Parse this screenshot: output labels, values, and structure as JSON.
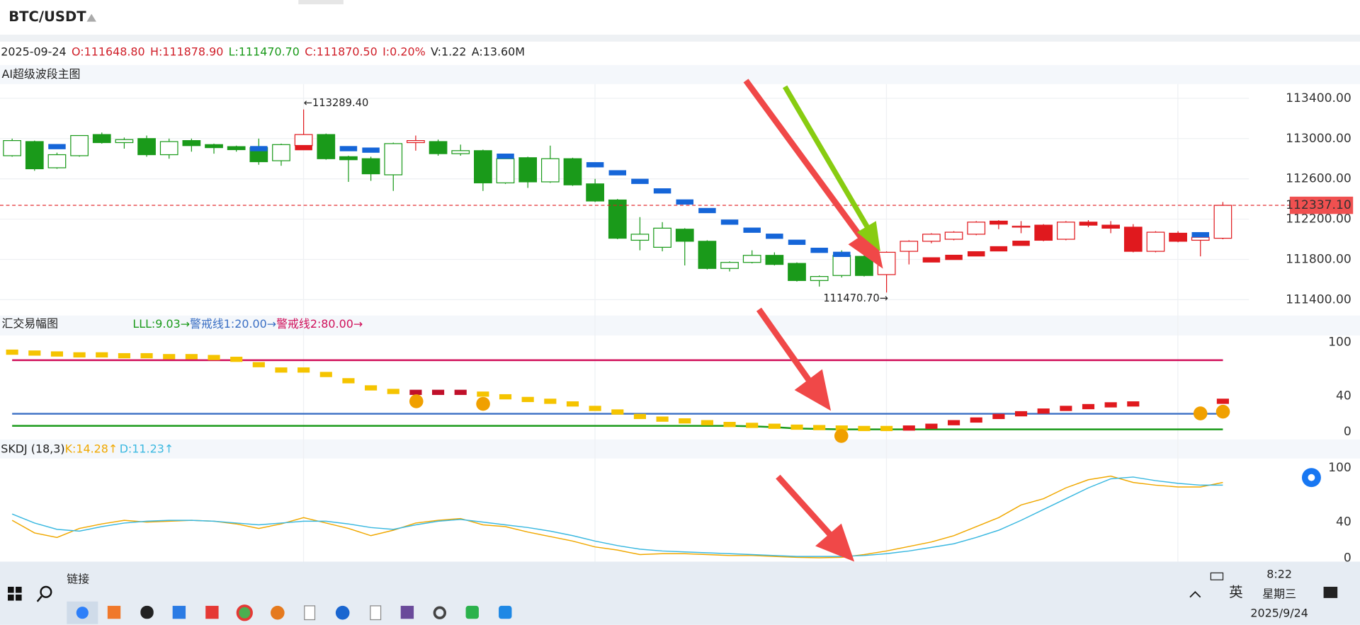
{
  "header": {
    "symbol": "BTC/USDT"
  },
  "info": {
    "date": "2025-09-24",
    "open": "O:111648.80",
    "high": "H:111878.90",
    "low": "L:111470.70",
    "close": "C:111870.50",
    "change": "I:0.20%",
    "volume": "V:1.22",
    "amount": "A:13.60M"
  },
  "chart_data": [
    {
      "type": "candlestick",
      "title": "AI超级波段主图",
      "open": [
        112830,
        112970,
        112710,
        112830,
        113040,
        112960,
        113000,
        112840,
        112980,
        112940,
        112920,
        112910,
        112780,
        112930,
        113040,
        112820,
        112800,
        112640,
        112960,
        112970,
        112850,
        112880,
        112560,
        112810,
        112570,
        112800,
        112550,
        112390,
        111990,
        111920,
        112100,
        111980,
        111710,
        111770,
        111840,
        111760,
        111590,
        111640,
        111830,
        111648.8,
        111880,
        111980,
        112000,
        112050,
        112180,
        112120,
        112140,
        112000,
        112170,
        112140,
        112120,
        111880,
        112060,
        111990,
        112010
      ],
      "high": [
        113000,
        112980,
        112860,
        113030,
        113060,
        113010,
        113030,
        113000,
        113000,
        112950,
        112930,
        113000,
        112950,
        113289.4,
        113050,
        112830,
        112820,
        112960,
        113030,
        112990,
        112940,
        112890,
        112810,
        112820,
        112930,
        112810,
        112600,
        112400,
        112220,
        112170,
        112110,
        111990,
        111780,
        111890,
        111870,
        111770,
        111640,
        111890,
        111850,
        111878.9,
        111990,
        112060,
        112080,
        112180,
        112190,
        112180,
        112150,
        112180,
        112190,
        112180,
        112150,
        112080,
        112080,
        112050,
        112370
      ],
      "low": [
        112820,
        112680,
        112700,
        112820,
        112950,
        112900,
        112820,
        112800,
        112870,
        112850,
        112870,
        112740,
        112730,
        112900,
        112790,
        112570,
        112580,
        112480,
        112880,
        112830,
        112830,
        112480,
        112550,
        112510,
        112560,
        112530,
        112370,
        112000,
        111890,
        111880,
        111740,
        111700,
        111680,
        111760,
        111740,
        111580,
        111530,
        111620,
        111630,
        111470.7,
        111750,
        111960,
        111990,
        112040,
        112100,
        112060,
        111980,
        111990,
        112120,
        112060,
        111870,
        111870,
        111970,
        111830,
        112000
      ],
      "close": [
        112980,
        112700,
        112840,
        113030,
        112960,
        112990,
        112840,
        112970,
        112930,
        112910,
        112890,
        112770,
        112940,
        113040,
        112800,
        112790,
        112650,
        112950,
        112980,
        112850,
        112880,
        112560,
        112800,
        112570,
        112800,
        112540,
        112380,
        112010,
        112050,
        112110,
        111980,
        111710,
        111770,
        111840,
        111750,
        111590,
        111630,
        111840,
        111640,
        111870.5,
        111980,
        112050,
        112070,
        112170,
        112150,
        112130,
        111990,
        112170,
        112140,
        112110,
        111880,
        112070,
        111980,
        112020,
        112337.1
      ],
      "colors": [
        "#1a9a1a",
        "#1a9a1a",
        "#1a9a1a",
        "#1a9a1a",
        "#1a9a1a",
        "#1a9a1a",
        "#1a9a1a",
        "#1a9a1a",
        "#1a9a1a",
        "#1a9a1a",
        "#1a9a1a",
        "#1a9a1a",
        "#1a9a1a",
        "#e0191e",
        "#1a9a1a",
        "#1a9a1a",
        "#1a9a1a",
        "#1a9a1a",
        "#e0191e",
        "#1a9a1a",
        "#1a9a1a",
        "#1a9a1a",
        "#1a9a1a",
        "#1a9a1a",
        "#1a9a1a",
        "#1a9a1a",
        "#1a9a1a",
        "#1a9a1a",
        "#1a9a1a",
        "#1a9a1a",
        "#1a9a1a",
        "#1a9a1a",
        "#1a9a1a",
        "#1a9a1a",
        "#1a9a1a",
        "#1a9a1a",
        "#1a9a1a",
        "#1a9a1a",
        "#1a9a1a",
        "#e0191e",
        "#e0191e",
        "#e0191e",
        "#e0191e",
        "#e0191e",
        "#e0191e",
        "#e0191e",
        "#e0191e",
        "#e0191e",
        "#e0191e",
        "#e0191e",
        "#e0191e",
        "#e0191e",
        "#e0191e",
        "#e0191e",
        "#e0191e"
      ],
      "markers": [
        {
          "color": "#1565d8",
          "values": [
            null,
            null,
            112920,
            null,
            null,
            null,
            null,
            null,
            null,
            null,
            null,
            112900,
            null,
            null,
            null,
            112900,
            112885,
            null,
            null,
            null,
            null,
            null,
            112825,
            null,
            null,
            null,
            112740,
            112660,
            112575,
            112480,
            112370,
            112285,
            112170,
            112090,
            112030,
            111970,
            111890,
            111850,
            null,
            null,
            null,
            null,
            null,
            null,
            null,
            null,
            null,
            null,
            null,
            null,
            null,
            null,
            null,
            112045,
            null
          ]
        },
        {
          "color": "#e0191e",
          "values": [
            null,
            null,
            null,
            null,
            null,
            null,
            null,
            null,
            null,
            null,
            null,
            null,
            null,
            112910,
            null,
            null,
            null,
            null,
            null,
            null,
            null,
            null,
            null,
            null,
            null,
            null,
            null,
            null,
            null,
            null,
            null,
            null,
            null,
            null,
            null,
            null,
            null,
            null,
            null,
            null,
            null,
            111795,
            111820,
            111855,
            111905,
            111960,
            null,
            null,
            null,
            null,
            null,
            null,
            null,
            null,
            null
          ]
        }
      ],
      "ylim": [
        111260,
        113550
      ],
      "yticks": [
        {
          "value": 111400,
          "label": "111400.00"
        },
        {
          "value": 111800,
          "label": "111800.00"
        },
        {
          "value": 112200,
          "label": "112200.00"
        },
        {
          "value": 112600,
          "label": "112600.00"
        },
        {
          "value": 113000,
          "label": "113000.00"
        },
        {
          "value": 113400,
          "label": "113400.00"
        }
      ],
      "last_price": {
        "value": 112337.1,
        "label": "112337.10"
      },
      "annotations": [
        {
          "value": 113289.4,
          "label": "←113289.40"
        },
        {
          "value": 111470.7,
          "label": "111470.70→"
        }
      ]
    },
    {
      "type": "dash",
      "title": "汇交易幅图",
      "values": [
        89,
        88,
        87,
        86,
        86,
        85,
        85,
        84,
        84,
        83,
        81,
        75,
        69,
        69,
        64,
        57,
        49,
        45,
        44,
        44,
        44,
        42,
        39,
        36,
        34,
        31,
        26,
        22,
        17,
        14,
        12,
        10,
        8,
        7,
        6,
        5,
        4.5,
        4,
        3.5,
        3.5,
        4,
        6,
        10,
        13,
        17,
        20,
        23,
        26,
        28,
        30,
        31,
        null,
        null,
        null,
        34
      ],
      "colors": [
        "#f5c400",
        "#f5c400",
        "#f5c400",
        "#f5c400",
        "#f5c400",
        "#f5c400",
        "#f5c400",
        "#f5c400",
        "#f5c400",
        "#f5c400",
        "#f5c400",
        "#f5c400",
        "#f5c400",
        "#f5c400",
        "#f5c400",
        "#f5c400",
        "#f5c400",
        "#f5c400",
        "#c0102a",
        "#c0102a",
        "#c0102a",
        "#f5c400",
        "#f5c400",
        "#f5c400",
        "#f5c400",
        "#f5c400",
        "#f5c400",
        "#f5c400",
        "#f5c400",
        "#f5c400",
        "#f5c400",
        "#f5c400",
        "#f5c400",
        "#f5c400",
        "#f5c400",
        "#f5c400",
        "#f5c400",
        "#f5c400",
        "#f5c400",
        "#f5c400",
        "#e0191e",
        "#e0191e",
        "#e0191e",
        "#e0191e",
        "#e0191e",
        "#e0191e",
        "#e0191e",
        "#e0191e",
        "#e0191e",
        "#e0191e",
        "#e0191e",
        "#e0191e",
        "#e0191e",
        "#e0191e",
        "#e0191e"
      ],
      "lll": {
        "label": "LLL:9.03→",
        "color": "#1a9a1a",
        "values": [
          6.5,
          6.5,
          6.5,
          6.5,
          6.5,
          6.5,
          6.5,
          6.5,
          6.5,
          6.5,
          6.5,
          6.5,
          6.5,
          6.5,
          6.5,
          6.5,
          6.5,
          6.5,
          6.5,
          6.5,
          6.5,
          6.5,
          6.5,
          6.5,
          6.5,
          6.5,
          6.5,
          6.5,
          6.5,
          6.5,
          6.5,
          6.5,
          6.5,
          6,
          5,
          3.5,
          3,
          2.5,
          2.5,
          2.5,
          2.5,
          2.5,
          2.5,
          2.5,
          2.5,
          2.5,
          2.5,
          2.5,
          2.5,
          2.5,
          2.5,
          2.5,
          2.5,
          2.5,
          2.5
        ]
      },
      "lines": [
        {
          "label": "警戒线1:20.00→",
          "value": 20,
          "color": "#3a6fc4"
        },
        {
          "label": "警戒线2:80.00→",
          "value": 80,
          "color": "#d0105a"
        }
      ],
      "ylim": [
        -6.8,
        106.8
      ],
      "yticks": [
        0,
        40,
        100
      ]
    },
    {
      "type": "line",
      "title": "SKDJ (18,3)",
      "series": [
        {
          "name": "K:14.28↑",
          "color": "#f0a800",
          "values": [
            42,
            28,
            23,
            33,
            38,
            42,
            40,
            41,
            42,
            41,
            38,
            33,
            38,
            45,
            39,
            33,
            25,
            31,
            39,
            42,
            44,
            37,
            35,
            29,
            24,
            19,
            12.5,
            9,
            4,
            5,
            5,
            4,
            3,
            3,
            2,
            1,
            0.5,
            1,
            4,
            8,
            13,
            18,
            25,
            35,
            45,
            59,
            66,
            78,
            87,
            91,
            84,
            81,
            79,
            79,
            84
          ]
        },
        {
          "name": "D:11.23↑",
          "color": "#3ab8e0",
          "values": [
            49,
            39,
            32,
            30,
            35,
            39,
            41,
            42,
            42,
            41,
            39,
            37,
            39,
            41,
            41,
            38,
            34,
            32,
            37,
            41,
            43,
            40,
            37,
            34,
            30,
            25,
            19,
            14,
            10,
            8,
            7,
            6,
            5,
            4,
            3,
            2,
            2,
            2,
            3,
            5,
            8,
            12,
            16,
            23,
            31,
            42,
            54,
            66,
            78,
            88,
            90,
            86,
            83,
            81,
            81
          ]
        }
      ],
      "ylim": [
        -3.8,
        109.6
      ],
      "yticks": [
        0,
        40,
        100
      ]
    }
  ],
  "taskbar": {
    "links": "链接",
    "ime": "英",
    "time": "8:22",
    "weekday": "星期三",
    "date": "2025/9/24"
  }
}
